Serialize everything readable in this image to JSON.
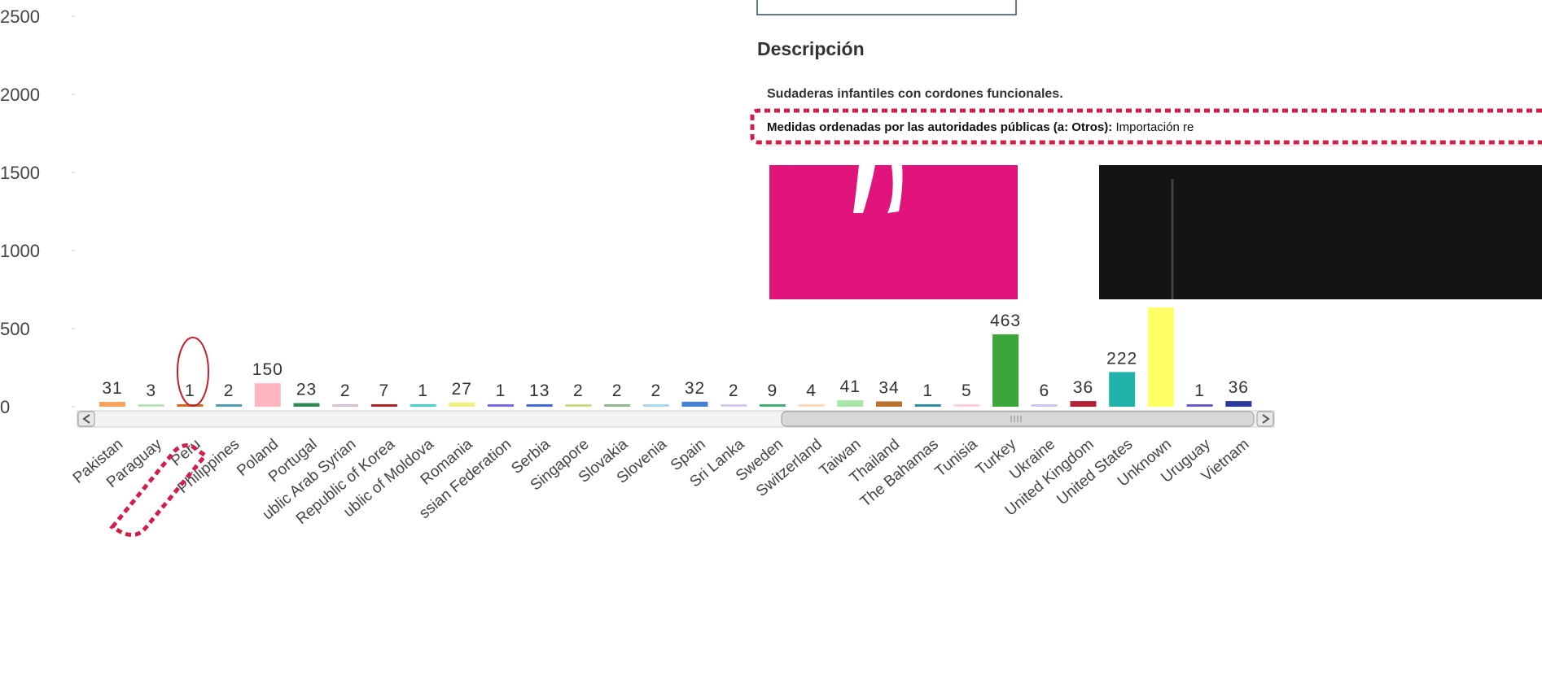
{
  "chart_data": {
    "type": "bar",
    "categories": [
      "Pakistan",
      "Paraguay",
      "Peru",
      "Philippines",
      "Poland",
      "Portugal",
      "ublic Arab Syrian",
      "Republic of Korea",
      "ublic of Moldova",
      "Romania",
      "ssian Federation",
      "Serbia",
      "Singapore",
      "Slovakia",
      "Slovenia",
      "Spain",
      "Sri Lanka",
      "Sweden",
      "Switzerland",
      "Taiwan",
      "Thailand",
      "The Bahamas",
      "Tunisia",
      "Turkey",
      "Ukraine",
      "United Kingdom",
      "United States",
      "Unknown",
      "Uruguay",
      "Vietnam"
    ],
    "values": [
      31,
      3,
      1,
      2,
      150,
      23,
      2,
      7,
      1,
      27,
      1,
      13,
      2,
      2,
      2,
      32,
      2,
      9,
      4,
      41,
      34,
      1,
      5,
      463,
      6,
      36,
      222,
      635,
      1,
      36
    ],
    "value_labels": [
      "31",
      "3",
      "1",
      "2",
      "150",
      "23",
      "2",
      "7",
      "1",
      "27",
      "1",
      "13",
      "2",
      "2",
      "2",
      "32",
      "2",
      "9",
      "4",
      "41",
      "34",
      "1",
      "5",
      "463",
      "6",
      "36",
      "222",
      null,
      "1",
      "36"
    ],
    "colors": [
      "#f4a460",
      "#b8e6b8",
      "#d2691e",
      "#4a9fb5",
      "#ffb6c1",
      "#2e8b57",
      "#d8bfd8",
      "#b22222",
      "#48d1cc",
      "#f0f080",
      "#7b68ee",
      "#4169e1",
      "#c8e080",
      "#8fbc8f",
      "#a8d8f0",
      "#4682d0",
      "#d8c8f0",
      "#3cb371",
      "#ffdab9",
      "#a8e6a8",
      "#b8732e",
      "#2f8fa0",
      "#ffd0d8",
      "#3aa63a",
      "#c8c8f0",
      "#b22234",
      "#20b2aa",
      "#ffff66",
      "#6a5acd",
      "#2a3a9a"
    ],
    "ylim": [
      0,
      2500
    ],
    "yticks": [
      0,
      500,
      1000,
      1500,
      2000,
      2500
    ]
  },
  "panel": {
    "heading": "Descripción",
    "summary": "Sudaderas infantiles con cordones funcionales.",
    "measures_label": "Medidas ordenadas por las autoridades públicas (a: Otros):",
    "measures_text": "Importación re"
  }
}
